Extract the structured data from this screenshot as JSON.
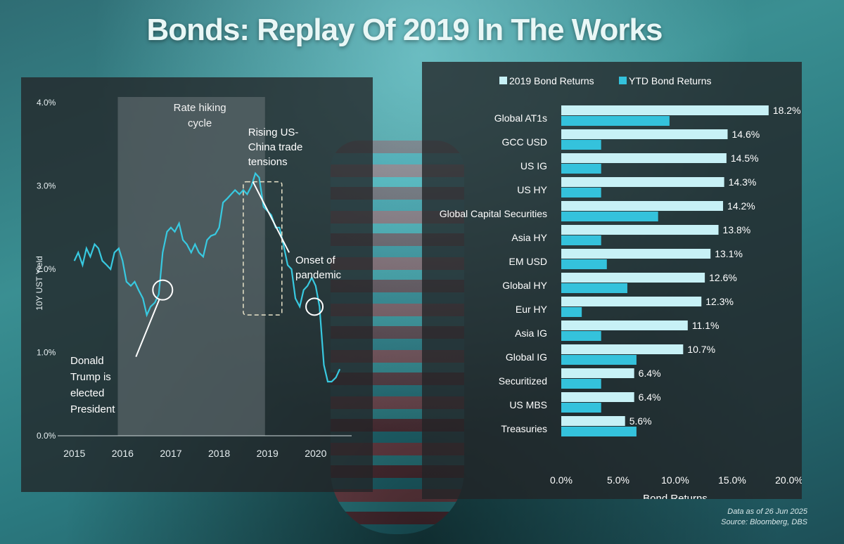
{
  "title": "Bonds: Replay Of 2019 In The Works",
  "footer": {
    "data_as_of": "Data as of 26 Jun 2025",
    "source": "Source: Bloomberg, DBS"
  },
  "colors": {
    "line": "#38c9e0",
    "bar_2019": "#c7f1f6",
    "bar_ytd": "#34c2dc",
    "shade": "#6a7478"
  },
  "chart_data": [
    {
      "type": "line",
      "ylabel": "10Y UST Yield",
      "y_ticks": [
        "0.0%",
        "1.0%",
        "2.0%",
        "3.0%",
        "4.0%"
      ],
      "x_ticks": [
        "2015",
        "2016",
        "2017",
        "2018",
        "2019",
        "2020"
      ],
      "ylim": [
        0,
        4.0
      ],
      "xlim": [
        2014.8,
        2020.6
      ],
      "series": [
        {
          "x": [
            2015.0,
            2015.08,
            2015.17,
            2015.25,
            2015.33,
            2015.42,
            2015.5,
            2015.58,
            2015.67,
            2015.75,
            2015.83,
            2015.92,
            2016.0,
            2016.08,
            2016.17,
            2016.25,
            2016.33,
            2016.42,
            2016.5,
            2016.58,
            2016.67,
            2016.75,
            2016.83,
            2016.92,
            2017.0,
            2017.08,
            2017.17,
            2017.25,
            2017.33,
            2017.42,
            2017.5,
            2017.58,
            2017.67,
            2017.75,
            2017.83,
            2017.92,
            2018.0,
            2018.08,
            2018.17,
            2018.25,
            2018.33,
            2018.42,
            2018.5,
            2018.58,
            2018.67,
            2018.75,
            2018.83,
            2018.92,
            2019.0,
            2019.08,
            2019.17,
            2019.25,
            2019.33,
            2019.42,
            2019.5,
            2019.58,
            2019.67,
            2019.75,
            2019.83,
            2019.92,
            2020.0,
            2020.08,
            2020.17,
            2020.25,
            2020.33,
            2020.42,
            2020.5
          ],
          "y": [
            2.1,
            2.2,
            2.05,
            2.25,
            2.15,
            2.3,
            2.25,
            2.1,
            2.05,
            2.0,
            2.2,
            2.25,
            2.1,
            1.85,
            1.8,
            1.85,
            1.75,
            1.65,
            1.45,
            1.55,
            1.6,
            1.7,
            2.2,
            2.45,
            2.5,
            2.45,
            2.55,
            2.35,
            2.3,
            2.2,
            2.3,
            2.2,
            2.15,
            2.35,
            2.4,
            2.42,
            2.5,
            2.8,
            2.85,
            2.9,
            2.95,
            2.9,
            2.95,
            2.9,
            3.0,
            3.15,
            3.1,
            2.75,
            2.7,
            2.65,
            2.5,
            2.5,
            2.3,
            2.05,
            2.0,
            1.65,
            1.55,
            1.75,
            1.8,
            1.9,
            1.8,
            1.55,
            0.85,
            0.65,
            0.65,
            0.7,
            0.8
          ]
        }
      ],
      "shaded_periods": [
        {
          "label": "Rate hiking cycle",
          "start": 2015.9,
          "end": 2018.95
        }
      ],
      "annotations": [
        {
          "text": "Donald Trump is elected President",
          "x": 2016.83,
          "y": 1.75
        },
        {
          "text": "Rising US-China trade tensions",
          "x": 2018.6,
          "y": 2.95
        },
        {
          "text": "Onset of pandemic",
          "x": 2020.12,
          "y": 1.55
        }
      ],
      "annotation_labels": {
        "trump": [
          "Donald",
          "Trump is",
          "elected",
          "President"
        ],
        "trade": [
          "Rising US-",
          "China trade",
          "tensions"
        ],
        "pandemic": [
          "Onset of",
          "pandemic"
        ],
        "hiking": [
          "Rate hiking",
          "cycle"
        ]
      }
    },
    {
      "type": "bar",
      "orientation": "horizontal",
      "xlabel": "Bond Returns",
      "x_ticks": [
        "0.0%",
        "5.0%",
        "10.0%",
        "15.0%",
        "20.0%"
      ],
      "xlim": [
        0,
        20
      ],
      "categories": [
        "Global AT1s",
        "GCC USD",
        "US IG",
        "US HY",
        "Global Capital Securities",
        "Asia HY",
        "EM USD",
        "Global HY",
        "Eur HY",
        "Asia IG",
        "Global IG",
        "Securitized",
        "US MBS",
        "Treasuries"
      ],
      "series": [
        {
          "name": "2019 Bond Returns",
          "values": [
            18.2,
            14.6,
            14.5,
            14.3,
            14.2,
            13.8,
            13.1,
            12.6,
            12.3,
            11.1,
            10.7,
            6.4,
            6.4,
            5.6
          ],
          "labels": [
            "18.2%",
            "14.6%",
            "14.5%",
            "14.3%",
            "14.2%",
            "13.8%",
            "13.1%",
            "12.6%",
            "12.3%",
            "11.1%",
            "10.7%",
            "6.4%",
            "6.4%",
            "5.6%"
          ]
        },
        {
          "name": "YTD Bond Returns",
          "values": [
            9.5,
            3.5,
            3.5,
            3.5,
            8.5,
            3.5,
            4.0,
            5.8,
            1.8,
            3.5,
            6.6,
            3.5,
            3.5,
            6.6
          ]
        }
      ],
      "legend_position": "top"
    }
  ]
}
